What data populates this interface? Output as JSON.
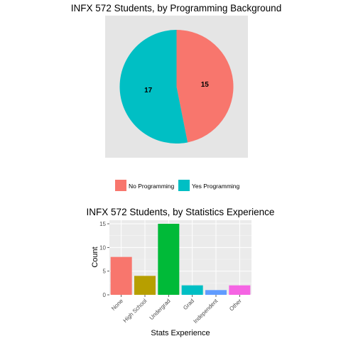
{
  "chart_data": [
    {
      "type": "pie",
      "title": "INFX 572 Students, by Programming Background",
      "categories": [
        "No Programming",
        "Yes Programming"
      ],
      "values": [
        15,
        17
      ],
      "colors": [
        "#F8766D",
        "#00BFC4"
      ],
      "legend_position": "bottom",
      "data_labels": [
        "15",
        "17"
      ]
    },
    {
      "type": "bar",
      "title": "INFX 572 Students, by Statistics Experience",
      "xlabel": "Stats Experience",
      "ylabel": "Count",
      "categories": [
        "None",
        "High School",
        "Undergrad",
        "Grad",
        "Independent",
        "Other"
      ],
      "values": [
        8,
        4,
        15,
        2,
        1,
        2
      ],
      "colors": [
        "#F8766D",
        "#B79F00",
        "#00BA38",
        "#00BFC4",
        "#619CFF",
        "#F564E3"
      ],
      "ylim": [
        0,
        15.75
      ],
      "yticks": [
        "0",
        "5",
        "10",
        "15"
      ],
      "grid": true
    }
  ]
}
